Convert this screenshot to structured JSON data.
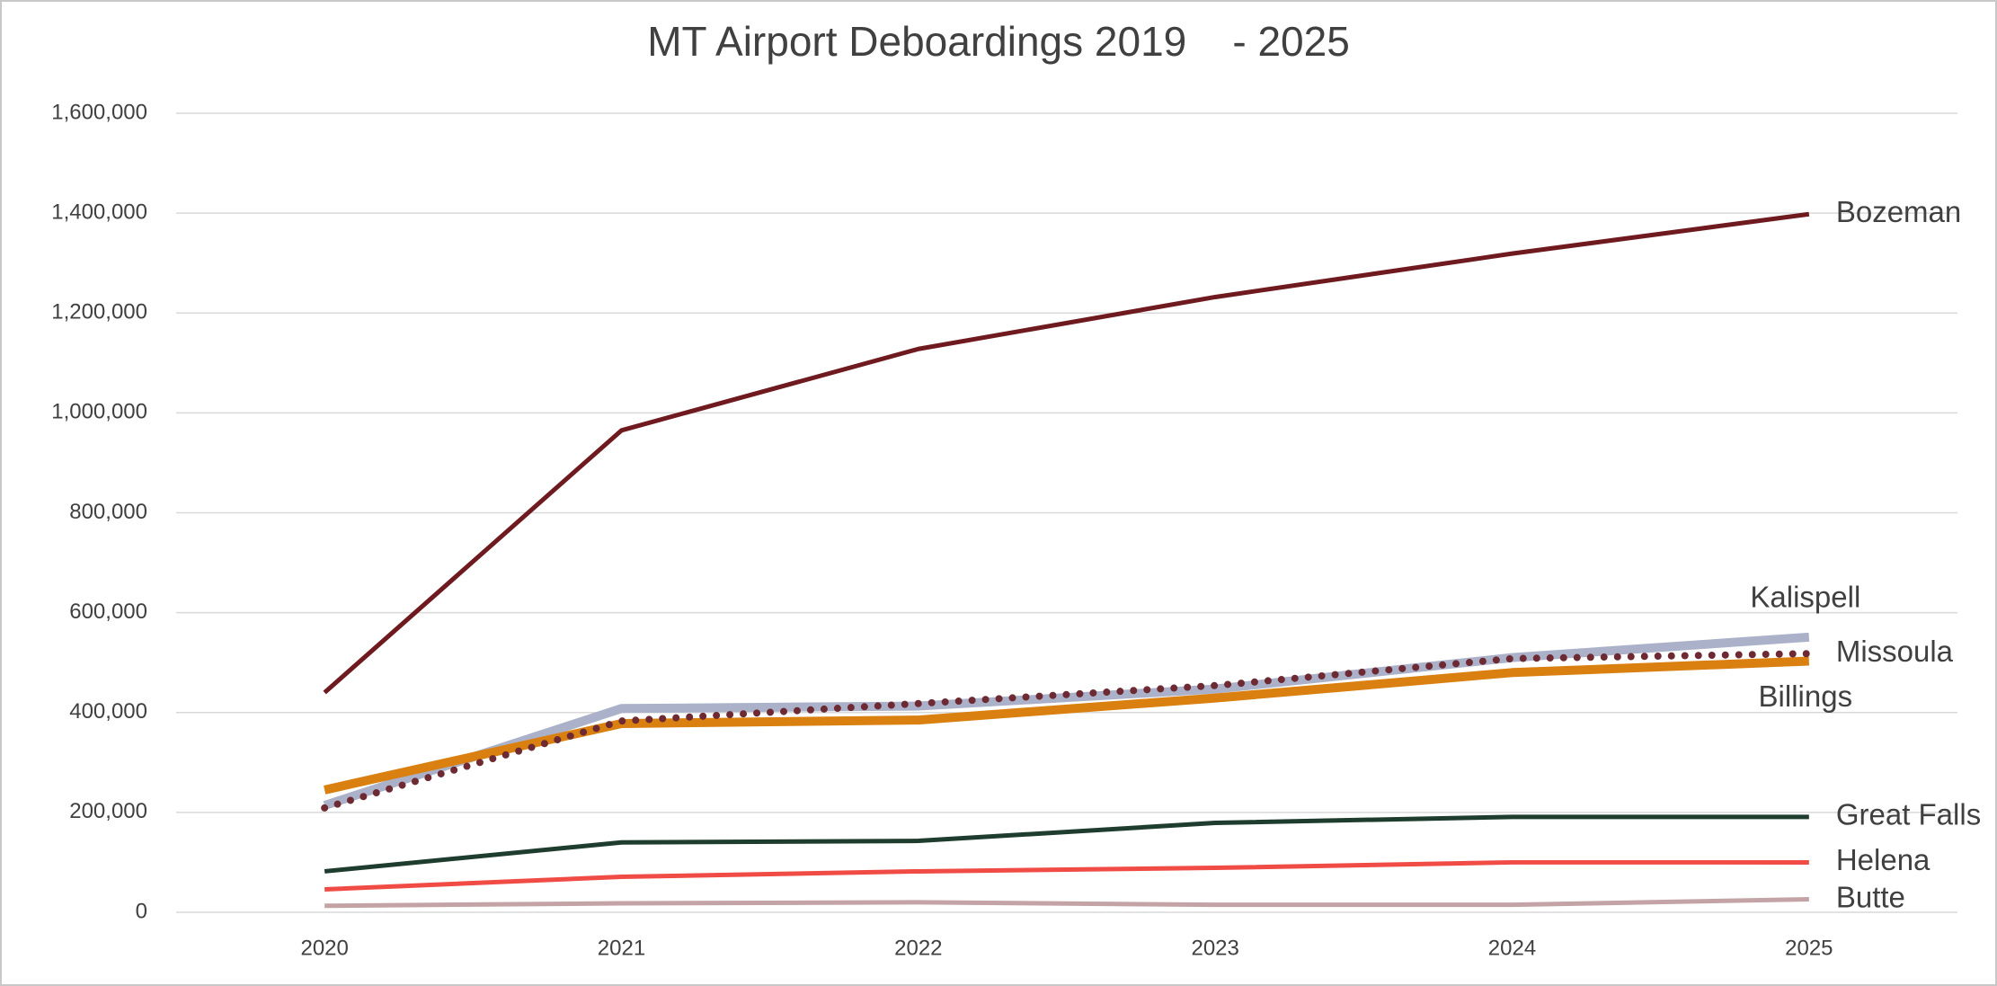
{
  "chart_data": {
    "type": "line",
    "title": "MT Airport Deboardings 2019    - 2025",
    "categories": [
      "2020",
      "2021",
      "2022",
      "2023",
      "2024",
      "2025"
    ],
    "series": [
      {
        "name": "Bozeman",
        "color": "#6e1a1f",
        "values": [
          440000,
          965000,
          1128000,
          1232000,
          1319000,
          1398000
        ]
      },
      {
        "name": "Kalispell",
        "color": "#aab1c9",
        "values": [
          214000,
          408000,
          413000,
          447000,
          510000,
          551000
        ]
      },
      {
        "name": "Missoula",
        "color": "#6e2a33",
        "style": "dotted",
        "values": [
          209000,
          383000,
          418000,
          454000,
          508000,
          518000
        ]
      },
      {
        "name": "Billings",
        "color": "#d98010",
        "values": [
          245000,
          378000,
          385000,
          429000,
          480000,
          503000
        ]
      },
      {
        "name": "Great Falls",
        "color": "#1f3d2e",
        "values": [
          82000,
          140000,
          143000,
          179000,
          191000,
          191000
        ]
      },
      {
        "name": "Helena",
        "color": "#f04c45",
        "values": [
          46000,
          71000,
          82000,
          89000,
          100000,
          100000
        ]
      },
      {
        "name": "Butte",
        "color": "#c4a3a6",
        "values": [
          13000,
          18000,
          20000,
          15000,
          15000,
          26000
        ]
      }
    ],
    "ylim": [
      0,
      1600000
    ],
    "yticks": [
      0,
      {
        "value": 200000,
        "label": "200,000"
      },
      {
        "value": 400000,
        "label": "400,000"
      },
      {
        "value": 600000,
        "label": "600,000"
      },
      {
        "value": 800000,
        "label": "800,000"
      },
      {
        "value": 1000000,
        "label": "1,000,000"
      },
      {
        "value": 1200000,
        "label": "1,200,000"
      },
      {
        "value": 1400000,
        "label": "1,400,000"
      },
      {
        "value": 1600000,
        "label": "1,600,000"
      }
    ],
    "grid": true
  }
}
